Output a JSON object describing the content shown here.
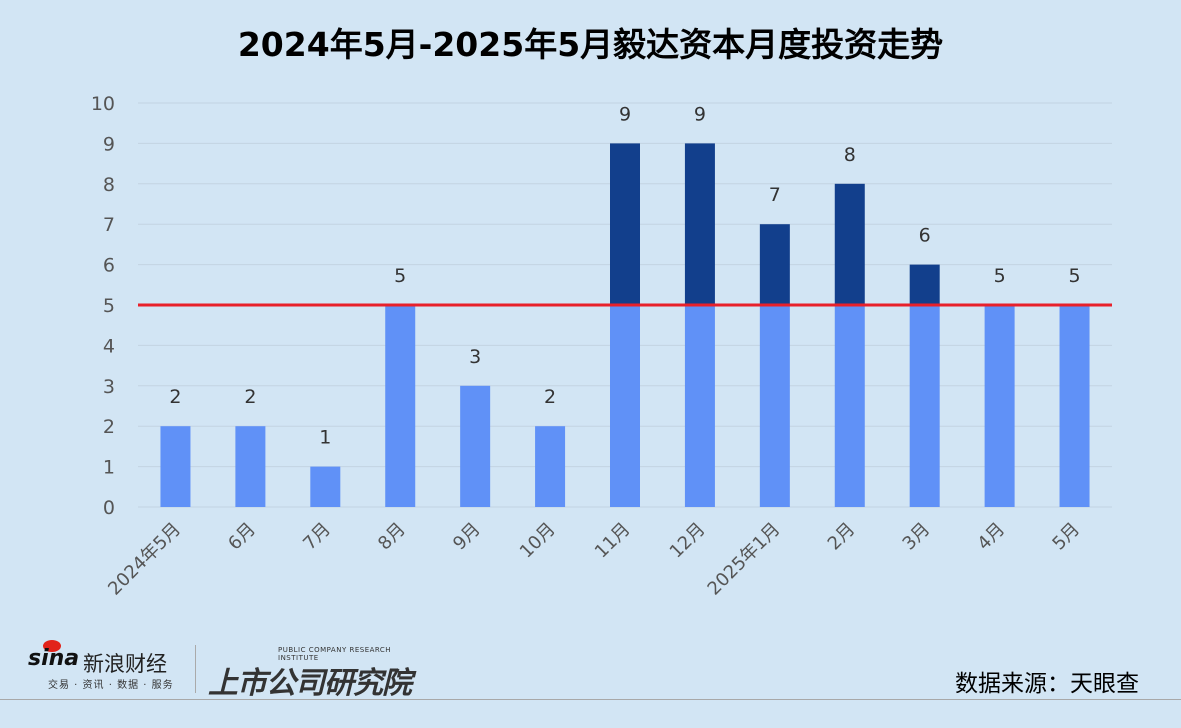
{
  "chart_data": {
    "type": "bar",
    "title": "2024年5月-2025年5月毅达资本月度投资走势",
    "categories": [
      "2024年5月",
      "6月",
      "7月",
      "8月",
      "9月",
      "10月",
      "11月",
      "12月",
      "2025年1月",
      "2月",
      "3月",
      "4月",
      "5月"
    ],
    "values": [
      2,
      2,
      1,
      5,
      3,
      2,
      9,
      9,
      7,
      8,
      6,
      5,
      5
    ],
    "ylim": [
      0,
      10
    ],
    "yticks": [
      "0",
      "1",
      "2",
      "3",
      "4",
      "5",
      "6",
      "7",
      "8",
      "9",
      "10"
    ],
    "reference_line": 5,
    "grid": true,
    "xlabel": "",
    "ylabel": "",
    "colors": {
      "below_reference": "#6091f7",
      "above_reference": "#123f8c",
      "reference_line": "#e8202a",
      "background": "#d2e5f4"
    }
  },
  "footer": {
    "source": "数据来源：天眼查",
    "logo_sina": "sina新浪财经",
    "logo_sina_sub": "交易 · 资讯 · 数据 · 服务",
    "logo_institute": "上市公司研究院",
    "logo_institute_en": "PUBLIC COMPANY RESEARCH INSTITUTE"
  }
}
